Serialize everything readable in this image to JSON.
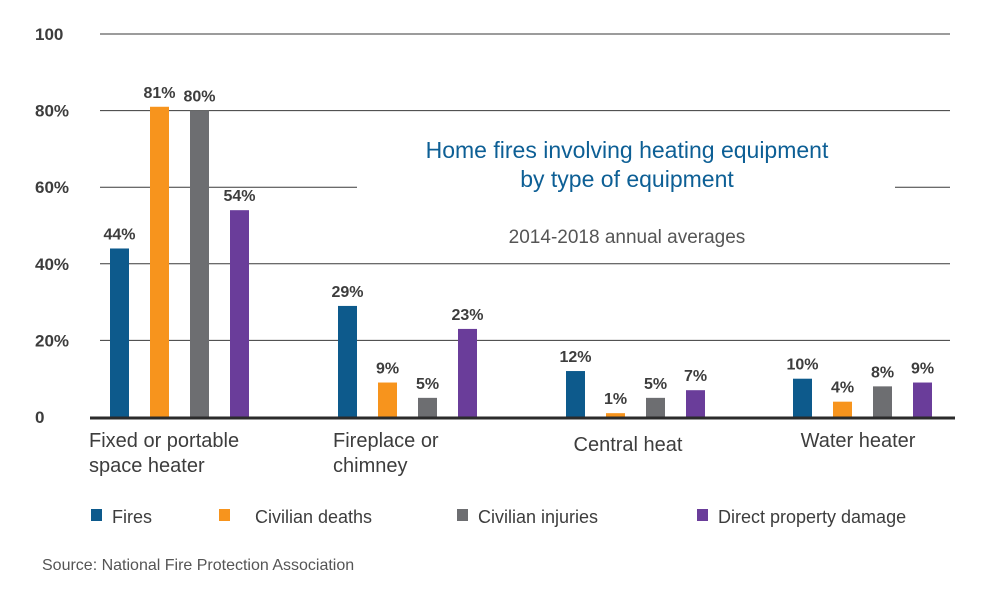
{
  "chart_data": {
    "type": "bar",
    "title": "Home fires involving heating equipment",
    "title_line2": "by type of equipment",
    "subtitle": "2014-2018 annual averages",
    "source": "Source: National Fire Protection Association",
    "categories": [
      [
        "Fixed or portable",
        "space heater"
      ],
      [
        "Fireplace or",
        "chimney"
      ],
      [
        "Central heat"
      ],
      [
        "Water heater"
      ]
    ],
    "series": [
      {
        "name": "Fires",
        "color": "#0d5a8c",
        "values": [
          44,
          29,
          12,
          10
        ],
        "labels": [
          "44%",
          "29%",
          "12%",
          "10%"
        ]
      },
      {
        "name": "Civilian deaths",
        "color": "#f7941d",
        "values": [
          81,
          9,
          1,
          4
        ],
        "labels": [
          "81%",
          "9%",
          "1%",
          "4%"
        ]
      },
      {
        "name": "Civilian injuries",
        "color": "#6d6e71",
        "values": [
          80,
          5,
          5,
          8
        ],
        "labels": [
          "80%",
          "5%",
          "5%",
          "8%"
        ]
      },
      {
        "name": "Direct property damage",
        "color": "#6a3d9a",
        "values": [
          54,
          23,
          7,
          9
        ],
        "labels": [
          "54%",
          "23%",
          "7%",
          "9%"
        ]
      }
    ],
    "yticks": [
      {
        "value": 0,
        "label": "0"
      },
      {
        "value": 20,
        "label": "20%"
      },
      {
        "value": 40,
        "label": "40%"
      },
      {
        "value": 60,
        "label": "60%"
      },
      {
        "value": 80,
        "label": "80%"
      },
      {
        "value": 100,
        "label": "100"
      }
    ],
    "ylim": [
      0,
      100
    ],
    "grid": true,
    "legend_position": "bottom"
  }
}
